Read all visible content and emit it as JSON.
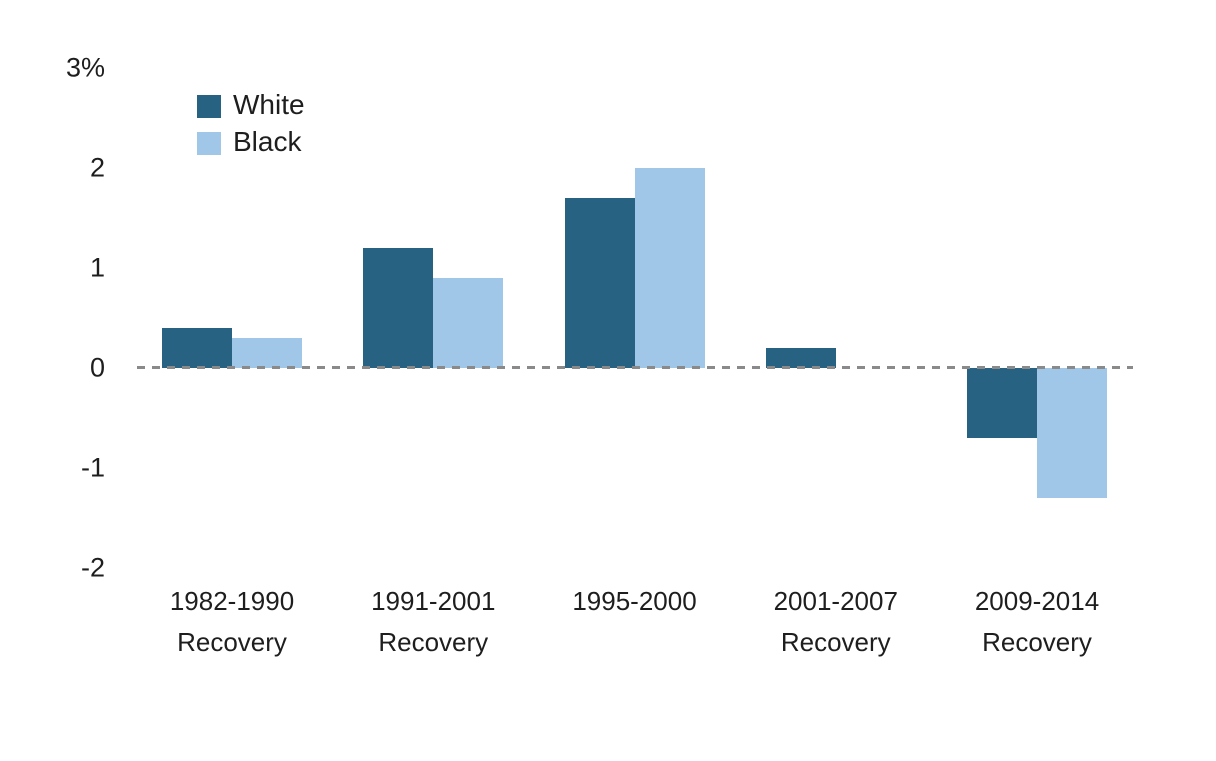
{
  "chart_data": {
    "type": "bar",
    "title": "",
    "categories": [
      "1982-1990 Recovery",
      "1991-2001 Recovery",
      "1995-2000",
      "2001-2007 Recovery",
      "2009-2014 Recovery"
    ],
    "category_lines": [
      [
        "1982-1990",
        "Recovery"
      ],
      [
        "1991-2001",
        "Recovery"
      ],
      [
        "1995-2000"
      ],
      [
        "2001-2007",
        "Recovery"
      ],
      [
        "2009-2014",
        "Recovery"
      ]
    ],
    "series": [
      {
        "name": "White",
        "color": "#276283",
        "values": [
          0.4,
          1.2,
          1.7,
          0.2,
          -0.7
        ]
      },
      {
        "name": "Black",
        "color": "#a0c6e8",
        "values": [
          0.3,
          0.9,
          2.0,
          0.0,
          -1.3
        ]
      }
    ],
    "y_ticks": [
      {
        "value": 3,
        "label": "3%"
      },
      {
        "value": 2,
        "label": "2"
      },
      {
        "value": 1,
        "label": "1"
      },
      {
        "value": 0,
        "label": "0"
      },
      {
        "value": -1,
        "label": "-1"
      },
      {
        "value": -2,
        "label": "-2"
      }
    ],
    "ylim": [
      -2,
      3
    ],
    "grid": false,
    "zero_line": {
      "style": "dashed",
      "color": "#8a8a8a"
    },
    "legend_position": "top-left",
    "xlabel": "",
    "ylabel": ""
  }
}
